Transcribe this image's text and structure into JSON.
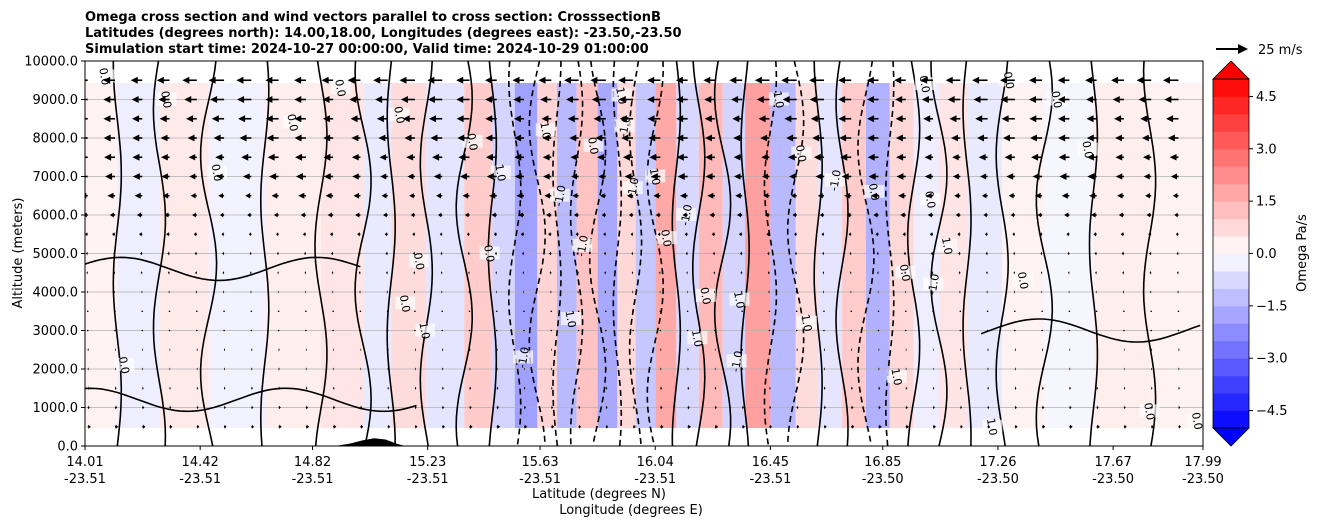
{
  "chart_data": {
    "type": "heatmap",
    "title_lines": [
      "Omega cross section and wind vectors parallel to cross section: CrosssectionB",
      "Latitudes (degrees north): 14.00,18.00, Longitudes (degrees east): -23.50,-23.50",
      "Simulation start time: 2024-10-27 00:00:00, Valid time: 2024-10-29 01:00:00"
    ],
    "ylabel": "Altitude (meters)",
    "xlabel_lat": "Latitude (degrees N)",
    "xlabel_lon": "Longitude (degrees E)",
    "ylim": [
      0,
      10000
    ],
    "y_ticks": [
      {
        "value": 0,
        "label": "0.0"
      },
      {
        "value": 1000,
        "label": "1000.0"
      },
      {
        "value": 2000,
        "label": "2000.0"
      },
      {
        "value": 3000,
        "label": "3000.0"
      },
      {
        "value": 4000,
        "label": "4000.0"
      },
      {
        "value": 5000,
        "label": "5000.0"
      },
      {
        "value": 6000,
        "label": "6000.0"
      },
      {
        "value": 7000,
        "label": "7000.0"
      },
      {
        "value": 8000,
        "label": "8000.0"
      },
      {
        "value": 9000,
        "label": "9000.0"
      },
      {
        "value": 10000,
        "label": "10000.0"
      }
    ],
    "x_ticks": [
      {
        "lat": "14.01",
        "lon": "-23.51"
      },
      {
        "lat": "14.42",
        "lon": "-23.51"
      },
      {
        "lat": "14.82",
        "lon": "-23.51"
      },
      {
        "lat": "15.23",
        "lon": "-23.51"
      },
      {
        "lat": "15.63",
        "lon": "-23.51"
      },
      {
        "lat": "16.04",
        "lon": "-23.51"
      },
      {
        "lat": "16.45",
        "lon": "-23.51"
      },
      {
        "lat": "16.85",
        "lon": "-23.50"
      },
      {
        "lat": "17.26",
        "lon": "-23.50"
      },
      {
        "lat": "17.67",
        "lon": "-23.50"
      },
      {
        "lat": "17.99",
        "lon": "-23.50"
      }
    ],
    "x_range": [
      14.01,
      17.99
    ],
    "grid": "horizontal",
    "colorbar": {
      "label": "Omega Pa/s",
      "min": -5.0,
      "max": 5.0,
      "tick_values": [
        4.5,
        3.0,
        1.5,
        0.0,
        -1.5,
        -3.0,
        -4.5
      ],
      "tick_labels": [
        "4.5",
        "3.0",
        "1.5",
        "0.0",
        "−1.5",
        "−3.0",
        "−4.5"
      ],
      "extend": "both",
      "colormap": "bwr"
    },
    "quiver_key": {
      "label": "25 m/s",
      "speed": 25
    },
    "omega_bands": [
      {
        "lat": 14.05,
        "omega": 0.3
      },
      {
        "lat": 14.2,
        "omega": -0.4
      },
      {
        "lat": 14.35,
        "omega": 0.5
      },
      {
        "lat": 14.55,
        "omega": -0.3
      },
      {
        "lat": 14.75,
        "omega": 0.4
      },
      {
        "lat": 14.95,
        "omega": 0.6
      },
      {
        "lat": 15.05,
        "omega": -0.5
      },
      {
        "lat": 15.15,
        "omega": 0.8
      },
      {
        "lat": 15.3,
        "omega": -0.6
      },
      {
        "lat": 15.42,
        "omega": 1.2
      },
      {
        "lat": 15.5,
        "omega": -1.0
      },
      {
        "lat": 15.58,
        "omega": -2.2
      },
      {
        "lat": 15.66,
        "omega": 1.0
      },
      {
        "lat": 15.72,
        "omega": -1.6
      },
      {
        "lat": 15.8,
        "omega": 1.4
      },
      {
        "lat": 15.87,
        "omega": -2.0
      },
      {
        "lat": 15.94,
        "omega": 0.9
      },
      {
        "lat": 16.0,
        "omega": -1.3
      },
      {
        "lat": 16.08,
        "omega": 2.0
      },
      {
        "lat": 16.15,
        "omega": -0.9
      },
      {
        "lat": 16.24,
        "omega": 1.6
      },
      {
        "lat": 16.32,
        "omega": -1.0
      },
      {
        "lat": 16.4,
        "omega": 2.2
      },
      {
        "lat": 16.5,
        "omega": -1.6
      },
      {
        "lat": 16.58,
        "omega": 0.8
      },
      {
        "lat": 16.66,
        "omega": -0.6
      },
      {
        "lat": 16.75,
        "omega": 1.2
      },
      {
        "lat": 16.83,
        "omega": -1.8
      },
      {
        "lat": 16.92,
        "omega": 0.9
      },
      {
        "lat": 17.0,
        "omega": -0.4
      },
      {
        "lat": 17.1,
        "omega": 0.6
      },
      {
        "lat": 17.2,
        "omega": -0.5
      },
      {
        "lat": 17.35,
        "omega": 0.3
      },
      {
        "lat": 17.5,
        "omega": -0.2
      },
      {
        "lat": 17.7,
        "omega": 0.4
      },
      {
        "lat": 17.9,
        "omega": 0.3
      }
    ],
    "contour_labels": [
      {
        "text": "0.0",
        "lat": 14.08,
        "alt": 9600
      },
      {
        "text": "0.0",
        "lat": 14.3,
        "alt": 9000
      },
      {
        "text": "0.0",
        "lat": 14.48,
        "alt": 7100
      },
      {
        "text": "0.0",
        "lat": 14.75,
        "alt": 8400
      },
      {
        "text": "0.0",
        "lat": 14.92,
        "alt": 9300
      },
      {
        "text": "0.0",
        "lat": 15.13,
        "alt": 8600
      },
      {
        "text": "0.0",
        "lat": 15.2,
        "alt": 4800
      },
      {
        "text": "1.0",
        "lat": 15.22,
        "alt": 3000
      },
      {
        "text": "0.0",
        "lat": 15.15,
        "alt": 3700
      },
      {
        "text": "0.0",
        "lat": 14.15,
        "alt": 2100
      },
      {
        "text": "0.0",
        "lat": 15.39,
        "alt": 7900
      },
      {
        "text": "1.0",
        "lat": 15.49,
        "alt": 7100
      },
      {
        "text": "0.0",
        "lat": 15.45,
        "alt": 5000
      },
      {
        "text": "-1.0",
        "lat": 15.57,
        "alt": 2300
      },
      {
        "text": "1.0",
        "lat": 15.65,
        "alt": 8200
      },
      {
        "text": "-1.0",
        "lat": 15.7,
        "alt": 6500
      },
      {
        "text": "-1.0",
        "lat": 15.78,
        "alt": 5200
      },
      {
        "text": "1.0",
        "lat": 15.74,
        "alt": 3300
      },
      {
        "text": "0.0",
        "lat": 15.82,
        "alt": 7800
      },
      {
        "text": "1.0",
        "lat": 15.92,
        "alt": 9100
      },
      {
        "text": "-1.0",
        "lat": 15.93,
        "alt": 8300
      },
      {
        "text": "-1.0",
        "lat": 15.96,
        "alt": 6700
      },
      {
        "text": "0.0",
        "lat": 16.08,
        "alt": 5400
      },
      {
        "text": "1.0",
        "lat": 16.04,
        "alt": 7000
      },
      {
        "text": "-1.0",
        "lat": 16.15,
        "alt": 6000
      },
      {
        "text": "0.0",
        "lat": 16.22,
        "alt": 3900
      },
      {
        "text": "1.0",
        "lat": 16.19,
        "alt": 2800
      },
      {
        "text": "1.0",
        "lat": 16.34,
        "alt": 3800
      },
      {
        "text": "-1.0",
        "lat": 16.33,
        "alt": 2200
      },
      {
        "text": "1.0",
        "lat": 16.48,
        "alt": 9000
      },
      {
        "text": "0.0",
        "lat": 16.56,
        "alt": 7600
      },
      {
        "text": "1.0",
        "lat": 16.58,
        "alt": 3200
      },
      {
        "text": "-1.0",
        "lat": 16.68,
        "alt": 6900
      },
      {
        "text": "0.0",
        "lat": 16.82,
        "alt": 6600
      },
      {
        "text": "0.0",
        "lat": 16.93,
        "alt": 4500
      },
      {
        "text": "1.0",
        "lat": 16.9,
        "alt": 1800
      },
      {
        "text": "-1.0",
        "lat": 17.03,
        "alt": 4200
      },
      {
        "text": "1.0",
        "lat": 17.08,
        "alt": 5200
      },
      {
        "text": "0.0",
        "lat": 17.02,
        "alt": 6400
      },
      {
        "text": "0.0",
        "lat": 17.0,
        "alt": 9400
      },
      {
        "text": "0.0",
        "lat": 17.3,
        "alt": 9500
      },
      {
        "text": "0.0",
        "lat": 17.47,
        "alt": 9000
      },
      {
        "text": "0.0",
        "lat": 17.35,
        "alt": 4300
      },
      {
        "text": "0.0",
        "lat": 17.58,
        "alt": 7700
      },
      {
        "text": "0.0",
        "lat": 17.8,
        "alt": 900
      },
      {
        "text": "1.0",
        "lat": 17.24,
        "alt": 500
      },
      {
        "text": "0.0",
        "lat": 17.97,
        "alt": 650
      }
    ],
    "wind_rows": [
      {
        "alt": 9500,
        "u": -14
      },
      {
        "alt": 9000,
        "u": -13
      },
      {
        "alt": 8500,
        "u": -12
      },
      {
        "alt": 8000,
        "u": -11
      },
      {
        "alt": 7500,
        "u": -10
      },
      {
        "alt": 7000,
        "u": -9
      },
      {
        "alt": 6500,
        "u": -7
      },
      {
        "alt": 6000,
        "u": -5
      },
      {
        "alt": 5500,
        "u": -3
      },
      {
        "alt": 5000,
        "u": -2
      },
      {
        "alt": 4500,
        "u": -1.5
      },
      {
        "alt": 4000,
        "u": -1
      },
      {
        "alt": 3500,
        "u": -0.5
      },
      {
        "alt": 3000,
        "u": 0.5
      },
      {
        "alt": 2500,
        "u": 1
      },
      {
        "alt": 2000,
        "u": 1
      },
      {
        "alt": 1500,
        "u": 1.5
      },
      {
        "alt": 1000,
        "u": 2
      },
      {
        "alt": 500,
        "u": 3
      }
    ],
    "terrain": [
      {
        "lat": 14.9,
        "alt": 0
      },
      {
        "lat": 14.95,
        "alt": 60
      },
      {
        "lat": 15.0,
        "alt": 150
      },
      {
        "lat": 15.04,
        "alt": 200
      },
      {
        "lat": 15.08,
        "alt": 170
      },
      {
        "lat": 15.12,
        "alt": 60
      },
      {
        "lat": 15.15,
        "alt": 0
      }
    ]
  }
}
